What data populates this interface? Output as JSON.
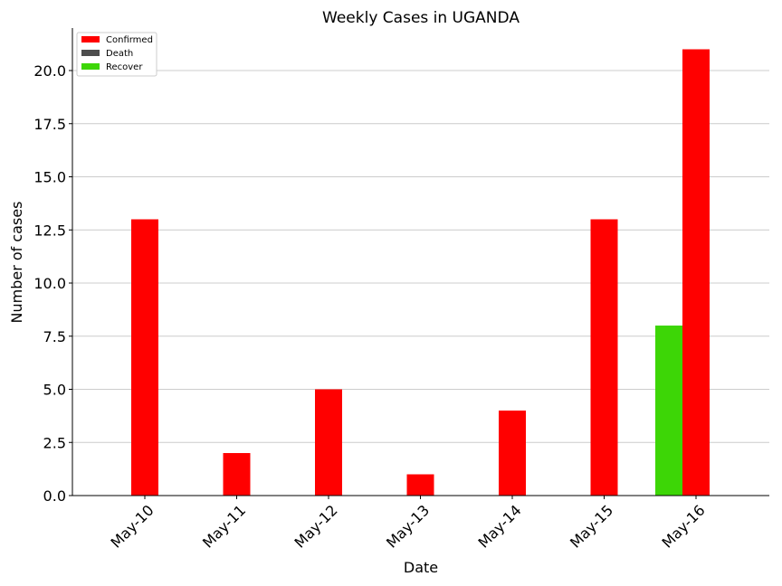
{
  "chart_data": {
    "type": "bar",
    "title": "Weekly Cases in UGANDA",
    "xlabel": "Date",
    "ylabel": "Number of cases",
    "categories": [
      "May-10",
      "May-11",
      "May-12",
      "May-13",
      "May-14",
      "May-15",
      "May-16"
    ],
    "series": [
      {
        "name": "Recover",
        "color": "#3dd606",
        "values": [
          0,
          0,
          0,
          0,
          0,
          0,
          8
        ]
      },
      {
        "name": "Death",
        "color": "#4d4d4d",
        "values": [
          0,
          0,
          0,
          0,
          0,
          0,
          0
        ]
      },
      {
        "name": "Confirmed",
        "color": "#ff0000",
        "values": [
          13,
          2,
          5,
          1,
          4,
          13,
          21
        ]
      }
    ],
    "legend_order": [
      "Confirmed",
      "Death",
      "Recover"
    ],
    "ylim": [
      0,
      22
    ],
    "yticks": [
      "0.0",
      "2.5",
      "5.0",
      "7.5",
      "10.0",
      "12.5",
      "15.0",
      "17.5",
      "20.0"
    ],
    "grid": "horizontal",
    "legend_position": "top-left"
  }
}
